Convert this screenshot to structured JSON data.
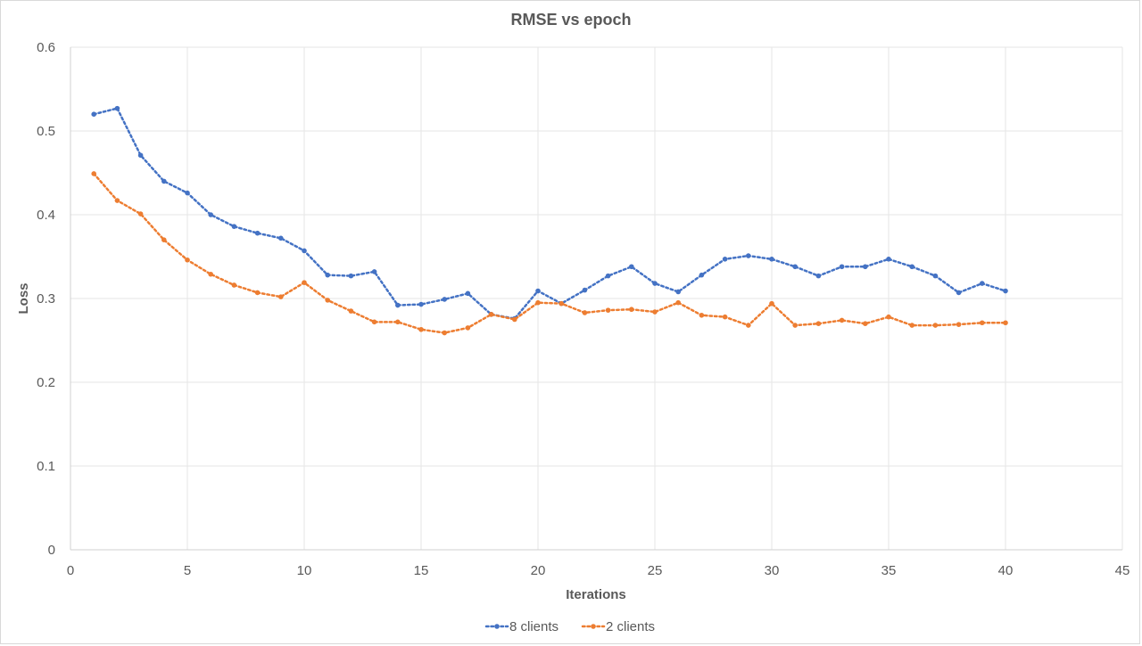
{
  "chart_data": {
    "type": "line",
    "title": "RMSE vs epoch",
    "xlabel": "Iterations",
    "ylabel": "Loss",
    "xlim": [
      0,
      45
    ],
    "ylim": [
      0,
      0.6
    ],
    "xticks": [
      0,
      5,
      10,
      15,
      20,
      25,
      30,
      35,
      40,
      45
    ],
    "yticks": [
      0,
      0.1,
      0.2,
      0.3,
      0.4,
      0.5,
      0.6
    ],
    "grid": true,
    "legend_position": "bottom",
    "x": [
      1,
      2,
      3,
      4,
      5,
      6,
      7,
      8,
      9,
      10,
      11,
      12,
      13,
      14,
      15,
      16,
      17,
      18,
      19,
      20,
      21,
      22,
      23,
      24,
      25,
      26,
      27,
      28,
      29,
      30,
      31,
      32,
      33,
      34,
      35,
      36,
      37,
      38,
      39,
      40
    ],
    "series": [
      {
        "name": "8 clients",
        "color": "#4472c4",
        "line_style": "dotted",
        "values": [
          0.52,
          0.527,
          0.471,
          0.44,
          0.426,
          0.4,
          0.386,
          0.378,
          0.372,
          0.357,
          0.328,
          0.327,
          0.332,
          0.292,
          0.293,
          0.299,
          0.306,
          0.281,
          0.276,
          0.309,
          0.294,
          0.31,
          0.327,
          0.338,
          0.318,
          0.308,
          0.328,
          0.347,
          0.351,
          0.347,
          0.338,
          0.327,
          0.338,
          0.338,
          0.347,
          0.338,
          0.327,
          0.307,
          0.318,
          0.309
        ]
      },
      {
        "name": "2 clients",
        "color": "#ed7d31",
        "line_style": "dotted",
        "values": [
          0.449,
          0.417,
          0.401,
          0.37,
          0.346,
          0.329,
          0.316,
          0.307,
          0.302,
          0.319,
          0.298,
          0.285,
          0.272,
          0.272,
          0.263,
          0.259,
          0.265,
          0.281,
          0.275,
          0.295,
          0.294,
          0.283,
          0.286,
          0.287,
          0.284,
          0.295,
          0.28,
          0.278,
          0.268,
          0.294,
          0.268,
          0.27,
          0.274,
          0.27,
          0.278,
          0.268,
          0.268,
          0.269,
          0.271,
          0.271
        ]
      }
    ]
  }
}
